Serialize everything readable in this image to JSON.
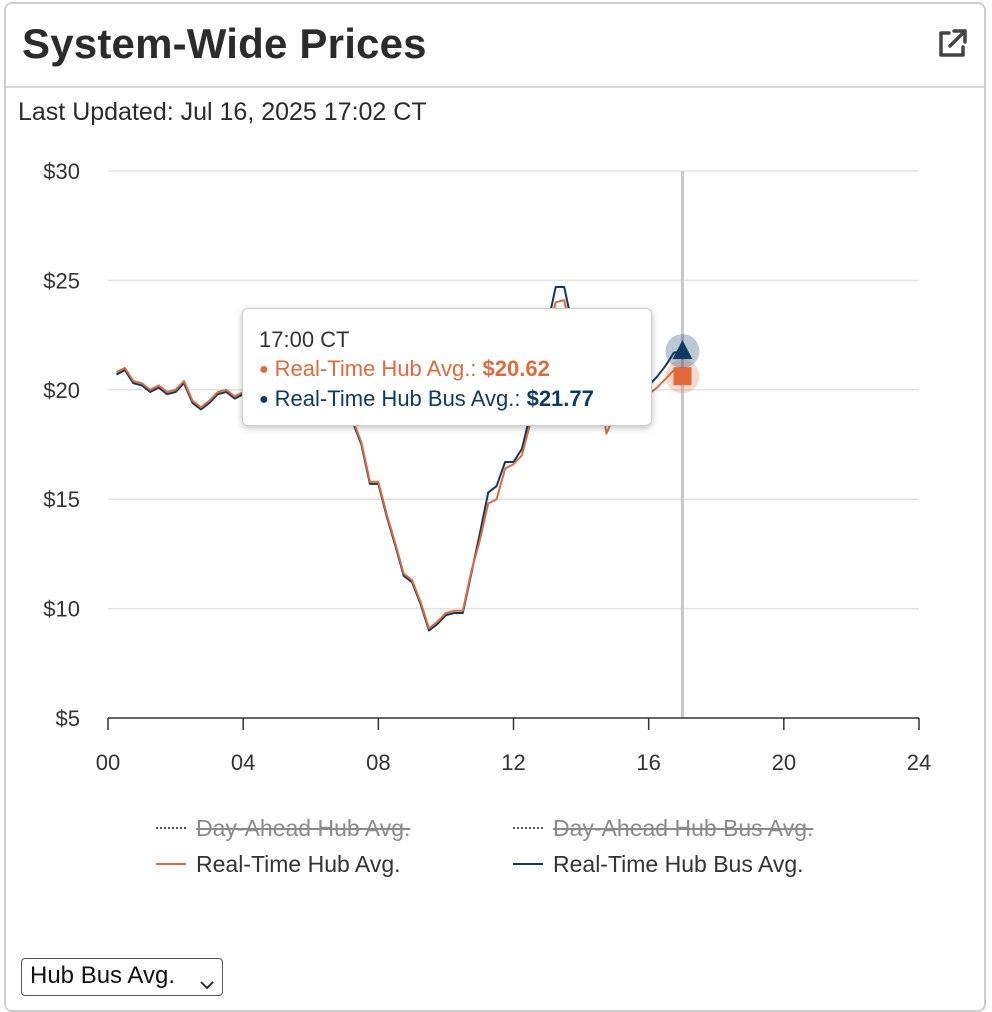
{
  "header": {
    "title": "System-Wide Prices",
    "popout_icon": "external-link-icon"
  },
  "updated_text": "Last Updated: Jul 16, 2025 17:02 CT",
  "chart_data": {
    "type": "line",
    "xlim": [
      0,
      24
    ],
    "ylim": [
      5,
      30
    ],
    "x_ticks": [
      "00",
      "04",
      "08",
      "12",
      "16",
      "20",
      "24"
    ],
    "y_ticks": [
      "$5",
      "$10",
      "$15",
      "$20",
      "$25",
      "$30"
    ],
    "grid": true,
    "crosshair_x": 17,
    "series": [
      {
        "name": "Real-Time Hub Bus Avg.",
        "color": "#0d3a66",
        "x": [
          0.25,
          0.5,
          0.75,
          1,
          1.25,
          1.5,
          1.75,
          2,
          2.25,
          2.5,
          2.75,
          3,
          3.25,
          3.5,
          3.75,
          4,
          4.25,
          4.5,
          4.75,
          5,
          5.25,
          5.5,
          5.75,
          6,
          6.25,
          6.5,
          6.75,
          7,
          7.25,
          7.5,
          7.75,
          8,
          8.25,
          8.5,
          8.75,
          9,
          9.25,
          9.5,
          9.75,
          10,
          10.25,
          10.5,
          10.75,
          11,
          11.25,
          11.5,
          11.75,
          12,
          12.25,
          12.5,
          12.75,
          13,
          13.25,
          13.5,
          13.75,
          14,
          14.25,
          14.5,
          14.75,
          15,
          15.25,
          15.5,
          15.75,
          16,
          16.25,
          16.5,
          16.75,
          17
        ],
        "y": [
          20.7,
          20.9,
          20.3,
          20.2,
          19.9,
          20.1,
          19.8,
          19.9,
          20.3,
          19.4,
          19.1,
          19.4,
          19.8,
          19.9,
          19.6,
          19.8,
          19.7,
          19.5,
          19.6,
          19.7,
          19.6,
          19.8,
          19.7,
          19.6,
          19.7,
          19.8,
          19.6,
          19.5,
          18.5,
          17.5,
          15.7,
          15.7,
          14.2,
          12.9,
          11.5,
          11.2,
          10.2,
          9.0,
          9.3,
          9.7,
          9.8,
          9.8,
          11.6,
          13.4,
          15.3,
          15.6,
          16.7,
          16.7,
          17.3,
          18.9,
          21.0,
          22.9,
          24.7,
          24.7,
          22.9,
          22.4,
          23.6,
          21.0,
          18.4,
          19.3,
          19.9,
          19.6,
          19.7,
          20.2,
          20.6,
          21.1,
          21.7,
          21.77
        ]
      },
      {
        "name": "Real-Time Hub Avg.",
        "color": "#e06a3a",
        "x": [
          0.25,
          0.5,
          0.75,
          1,
          1.25,
          1.5,
          1.75,
          2,
          2.25,
          2.5,
          2.75,
          3,
          3.25,
          3.5,
          3.75,
          4,
          4.25,
          4.5,
          4.75,
          5,
          5.25,
          5.5,
          5.75,
          6,
          6.25,
          6.5,
          6.75,
          7,
          7.25,
          7.5,
          7.75,
          8,
          8.25,
          8.5,
          8.75,
          9,
          9.25,
          9.5,
          9.75,
          10,
          10.25,
          10.5,
          10.75,
          11,
          11.25,
          11.5,
          11.75,
          12,
          12.25,
          12.5,
          12.75,
          13,
          13.25,
          13.5,
          13.75,
          14,
          14.25,
          14.5,
          14.75,
          15,
          15.25,
          15.5,
          15.75,
          16,
          16.25,
          16.5,
          16.75,
          17
        ],
        "y": [
          20.8,
          21.0,
          20.4,
          20.3,
          20.0,
          20.2,
          19.9,
          20.0,
          20.4,
          19.5,
          19.2,
          19.5,
          19.9,
          20.0,
          19.7,
          19.9,
          19.8,
          19.6,
          19.7,
          19.8,
          19.7,
          19.9,
          19.8,
          19.7,
          19.8,
          19.9,
          19.7,
          19.6,
          18.6,
          17.6,
          15.8,
          15.8,
          14.3,
          13.0,
          11.6,
          11.3,
          10.3,
          9.1,
          9.4,
          9.8,
          9.9,
          9.9,
          11.7,
          13.1,
          14.8,
          15.0,
          16.4,
          16.6,
          17.0,
          18.5,
          20.5,
          22.4,
          24.0,
          24.1,
          22.3,
          21.9,
          23.0,
          20.6,
          18.0,
          18.9,
          19.5,
          19.3,
          19.4,
          19.8,
          20.1,
          20.5,
          20.9,
          20.62
        ]
      }
    ],
    "legend": [
      {
        "name": "Day-Ahead Hub Avg.",
        "style": "dotted",
        "color": "#555555",
        "hidden": true
      },
      {
        "name": "Day-Ahead Hub Bus Avg.",
        "style": "dotted",
        "color": "#555555",
        "hidden": true
      },
      {
        "name": "Real-Time Hub Avg.",
        "style": "solid",
        "color": "#e06a3a",
        "hidden": false
      },
      {
        "name": "Real-Time Hub Bus Avg.",
        "style": "solid",
        "color": "#0d3a66",
        "hidden": false
      }
    ],
    "tooltip": {
      "time": "17:00 CT",
      "rows": [
        {
          "label": "Real-Time Hub Avg.:",
          "value": "$20.62",
          "color": "#e06a3a"
        },
        {
          "label": "Real-Time Hub Bus Avg.:",
          "value": "$21.77",
          "color": "#0d3a66"
        }
      ]
    }
  },
  "select": {
    "value": "Hub Bus Avg."
  }
}
